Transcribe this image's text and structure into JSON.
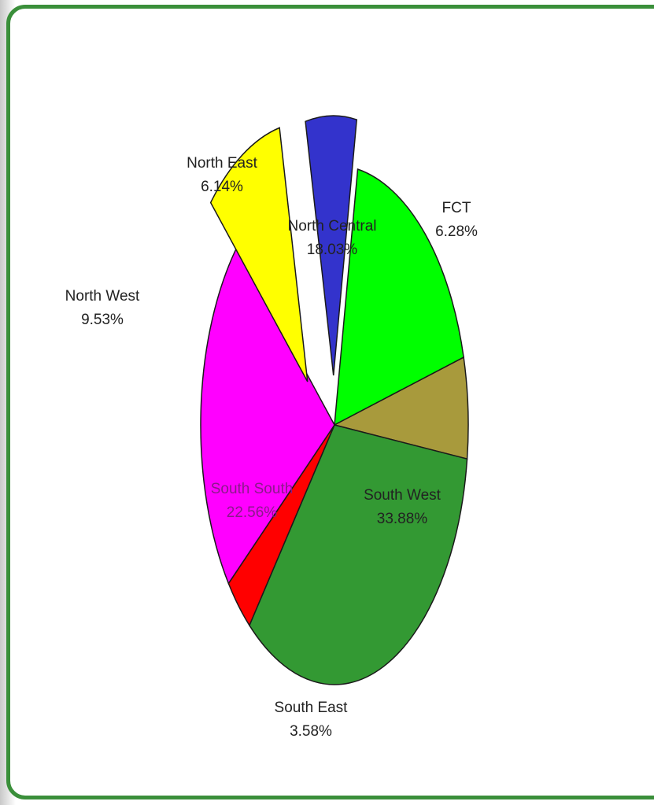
{
  "page": {
    "title": ""
  },
  "chart_data": {
    "type": "pie",
    "title": "",
    "unit": "%",
    "slices": [
      {
        "name": "North Central",
        "value": 18.03,
        "label": "18.03%",
        "color": "#00ff00",
        "exploded": false
      },
      {
        "name": "FCT",
        "value": 6.28,
        "label": "6.28%",
        "color": "#a89a3c",
        "exploded": false
      },
      {
        "name": "South West",
        "value": 33.88,
        "label": "33.88%",
        "color": "#339933",
        "exploded": false
      },
      {
        "name": "South East",
        "value": 3.58,
        "label": "3.58%",
        "color": "#ff0000",
        "exploded": false
      },
      {
        "name": "South South",
        "value": 22.56,
        "label": "22.56%",
        "color": "#ff00ff",
        "exploded": false
      },
      {
        "name": "North West",
        "value": 9.53,
        "label": "9.53%",
        "color": "#ffff00",
        "exploded": true
      },
      {
        "name": "North East",
        "value": 6.14,
        "label": "6.14%",
        "color": "#3333cc",
        "exploded": true
      }
    ],
    "legend": "none"
  }
}
